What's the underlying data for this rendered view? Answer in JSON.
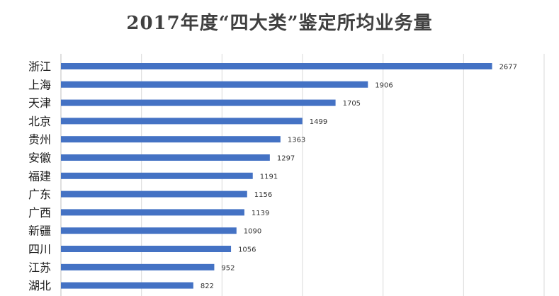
{
  "chart_data": {
    "type": "bar",
    "orientation": "horizontal",
    "title": "2017年度“四大类”鉴定所均业务量",
    "categories": [
      "浙江",
      "上海",
      "天津",
      "北京",
      "贵州",
      "安徽",
      "福建",
      "广东",
      "广西",
      "新疆",
      "四川",
      "江苏",
      "湖北"
    ],
    "values": [
      2677,
      1906,
      1705,
      1499,
      1363,
      1297,
      1191,
      1156,
      1139,
      1090,
      1056,
      952,
      822
    ],
    "xlim": [
      0,
      3000
    ],
    "grid": true,
    "bar_color": "#4472c4",
    "grid_color": "#d9d9d9"
  }
}
